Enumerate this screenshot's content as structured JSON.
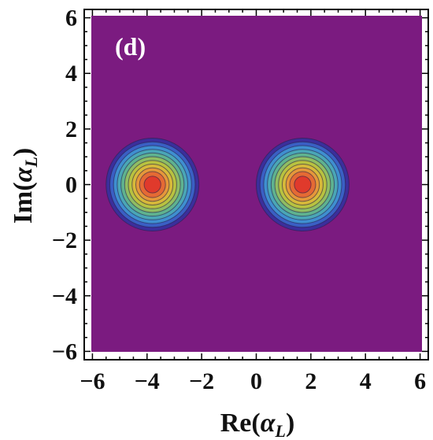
{
  "chart_data": {
    "type": "heatmap",
    "panel_label": "(d)",
    "xlabel": {
      "prefix": "Re(",
      "symbol": "α",
      "sub": "L",
      "suffix": ")"
    },
    "ylabel": {
      "prefix": "Im(",
      "symbol": "α",
      "sub": "L",
      "suffix": ")"
    },
    "xlim": [
      -6.3,
      6.3
    ],
    "ylim": [
      -6.3,
      6.3
    ],
    "x_ticks": [
      -6,
      -4,
      -2,
      0,
      2,
      4,
      6
    ],
    "y_ticks": [
      -6,
      -4,
      -2,
      0,
      2,
      4,
      6
    ],
    "x_tick_labels": [
      "−6",
      "−4",
      "−2",
      "0",
      "2",
      "4",
      "6"
    ],
    "y_tick_labels": [
      "−6",
      "−4",
      "−2",
      "0",
      "2",
      "4",
      "6"
    ],
    "grid": false,
    "background_color": "#7b1b80",
    "contour_colors": [
      "#3b2f9c",
      "#3a5fc4",
      "#3f8fd0",
      "#4aa6b6",
      "#5fb28f",
      "#8fbd63",
      "#b8c240",
      "#d7b93a",
      "#e5973a",
      "#e56a34",
      "#e03a2c"
    ],
    "peaks": [
      {
        "x": -3.8,
        "y": 0.0,
        "radius": 1.7
      },
      {
        "x": 1.7,
        "y": 0.0,
        "radius": 1.7
      }
    ]
  }
}
